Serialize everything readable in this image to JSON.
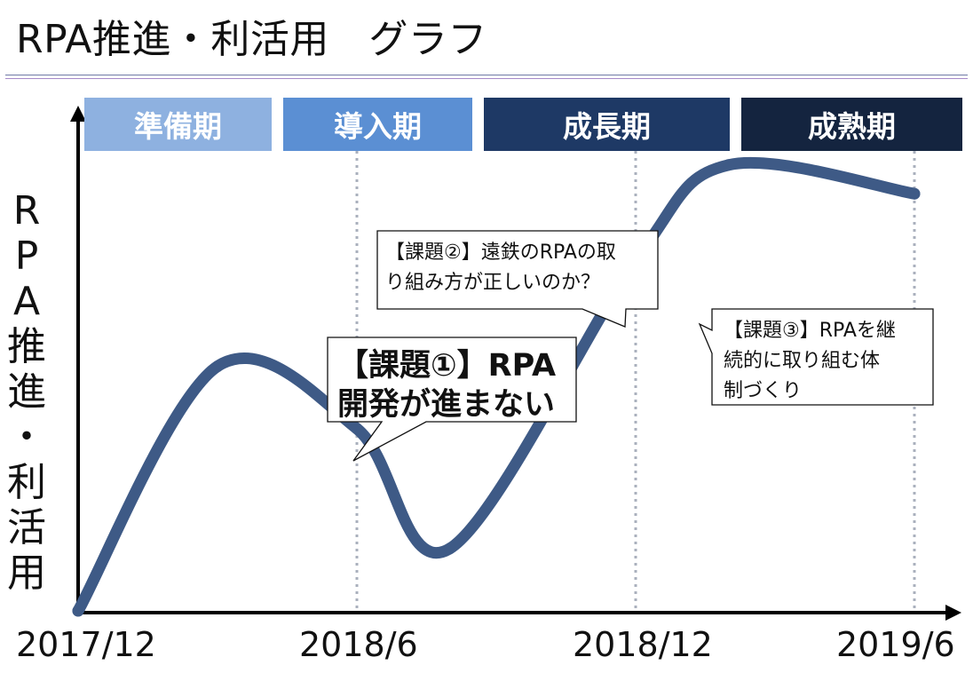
{
  "page": {
    "title": "RPA推進・利活用　グラフ"
  },
  "colors": {
    "curve": "#3e5a86",
    "phase_prep": "#8eb1e0",
    "phase_intro": "#5b8fd3",
    "phase_growth": "#1e3965",
    "phase_mature": "#14243f",
    "guide": "#aab0bd"
  },
  "chart_data": {
    "type": "line",
    "title": "",
    "xlabel": "",
    "ylabel": "RPA推進・利活用",
    "ylabel_chars": [
      "R",
      "P",
      "A",
      "推",
      "進",
      "・",
      "利",
      "活",
      "用"
    ],
    "x_ticks": [
      "2017/12",
      "2018/6",
      "2018/12",
      "2019/6"
    ],
    "phases": [
      {
        "label": "準備期",
        "color": "#8eb1e0"
      },
      {
        "label": "導入期",
        "color": "#5b8fd3"
      },
      {
        "label": "成長期",
        "color": "#1e3965"
      },
      {
        "label": "成熟期",
        "color": "#14243f"
      }
    ],
    "callouts": [
      {
        "lines": [
          "【課題①】RPA",
          "開発が進まない"
        ]
      },
      {
        "lines": [
          "【課題②】遠鉄のRPAの取",
          "り組み方が正しいのか？"
        ]
      },
      {
        "lines": [
          "【課題③】RPAを継",
          "続的に取り組む体",
          "制づくり"
        ]
      }
    ],
    "series": [
      {
        "x": [
          "2017/12",
          "2018/3",
          "2018/6",
          "2018/8",
          "2018/12",
          "2019/2",
          "2019/6"
        ],
        "values": [
          0,
          0.51,
          0.38,
          0.13,
          0.73,
          0.93,
          0.87
        ]
      }
    ]
  }
}
